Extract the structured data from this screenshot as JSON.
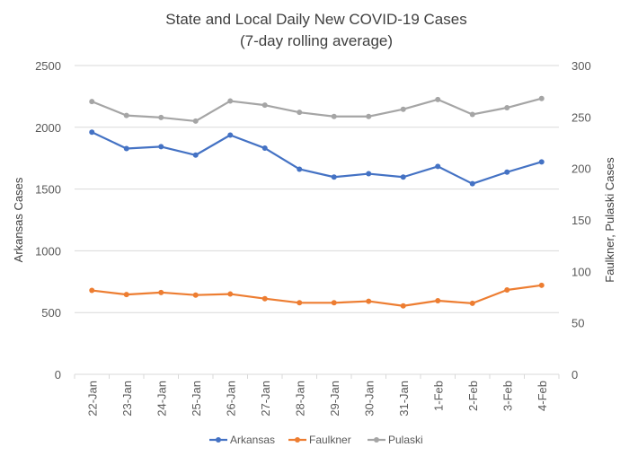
{
  "chart_data": {
    "type": "line",
    "title": "State and Local Daily New COVID-19 Cases",
    "subtitle": "(7-day rolling average)",
    "categories": [
      "22-Jan",
      "23-Jan",
      "24-Jan",
      "25-Jan",
      "26-Jan",
      "27-Jan",
      "28-Jan",
      "29-Jan",
      "30-Jan",
      "31-Jan",
      "1-Feb",
      "2-Feb",
      "3-Feb",
      "4-Feb"
    ],
    "ylabel": "Arkansas Cases",
    "y2label": "Faulkner, Pulaski Cases",
    "ylim": [
      0,
      2500
    ],
    "y2lim": [
      0,
      300
    ],
    "yticks": [
      0,
      500,
      1000,
      1500,
      2000,
      2500
    ],
    "y2ticks": [
      0,
      50,
      100,
      150,
      200,
      250,
      300
    ],
    "grid": true,
    "legend_position": "bottom",
    "series": [
      {
        "name": "Arkansas",
        "axis": "left",
        "color": "#4472C4",
        "values": [
          1960,
          1828,
          1843,
          1775,
          1937,
          1831,
          1661,
          1597,
          1624,
          1597,
          1683,
          1543,
          1637,
          1720
        ]
      },
      {
        "name": "Faulkner",
        "axis": "right",
        "color": "#ED7D31",
        "values": [
          81.5,
          77.5,
          79.5,
          77,
          78,
          73.5,
          69.5,
          69.5,
          71,
          66.5,
          71.5,
          69,
          82,
          86.5
        ]
      },
      {
        "name": "Pulaski",
        "axis": "right",
        "color": "#A5A5A5",
        "values": [
          265,
          251.5,
          249.5,
          246,
          265.5,
          261.5,
          254.5,
          250.5,
          250.5,
          257.5,
          267,
          252.5,
          259,
          268
        ]
      }
    ]
  }
}
